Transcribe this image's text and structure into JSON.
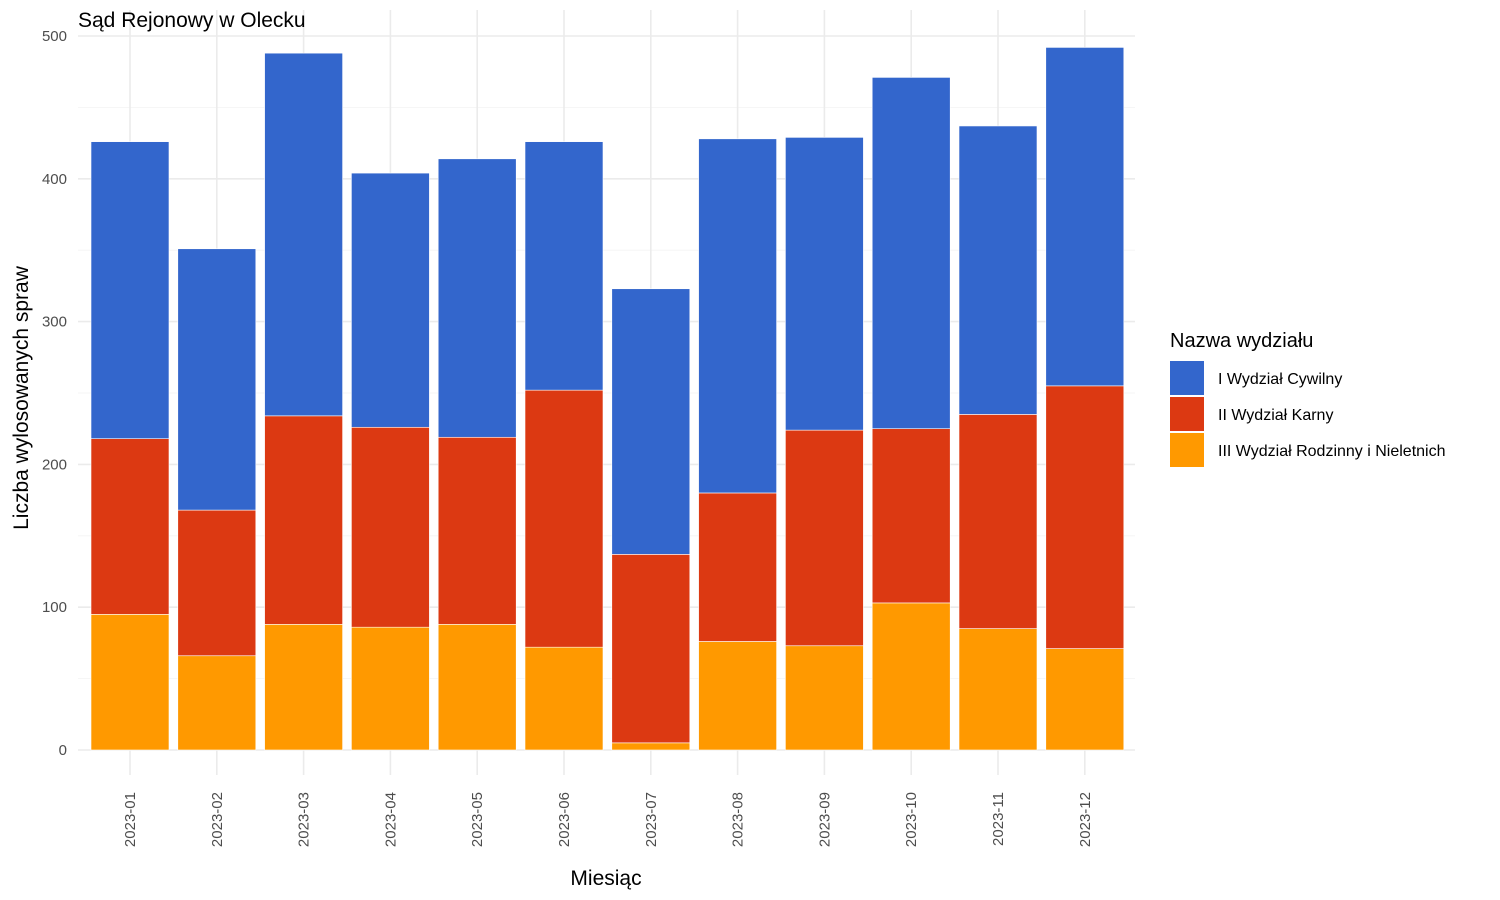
{
  "chart_data": {
    "type": "bar",
    "stacked": true,
    "title": "Sąd Rejonowy w Olecku",
    "xlabel": "Miesiąc",
    "ylabel": "Liczba wylosowanych spraw",
    "ylim": [
      0,
      500
    ],
    "yticks": [
      0,
      100,
      200,
      300,
      400,
      500
    ],
    "grid": true,
    "legend_title": "Nazwa wydziału",
    "legend_position": "right",
    "categories": [
      "2023-01",
      "2023-02",
      "2023-03",
      "2023-04",
      "2023-05",
      "2023-06",
      "2023-07",
      "2023-08",
      "2023-09",
      "2023-10",
      "2023-11",
      "2023-12"
    ],
    "series": [
      {
        "name": "I Wydział Cywilny",
        "color": "#3366cc",
        "values": [
          208,
          183,
          254,
          178,
          195,
          174,
          186,
          248,
          205,
          246,
          202,
          237
        ]
      },
      {
        "name": "II Wydział Karny",
        "color": "#dc3912",
        "values": [
          123,
          102,
          146,
          140,
          131,
          180,
          132,
          104,
          151,
          122,
          150,
          184
        ]
      },
      {
        "name": "III Wydział Rodzinny i Nieletnich",
        "color": "#ff9900",
        "values": [
          95,
          66,
          88,
          86,
          88,
          72,
          5,
          76,
          73,
          103,
          85,
          71
        ]
      }
    ]
  }
}
